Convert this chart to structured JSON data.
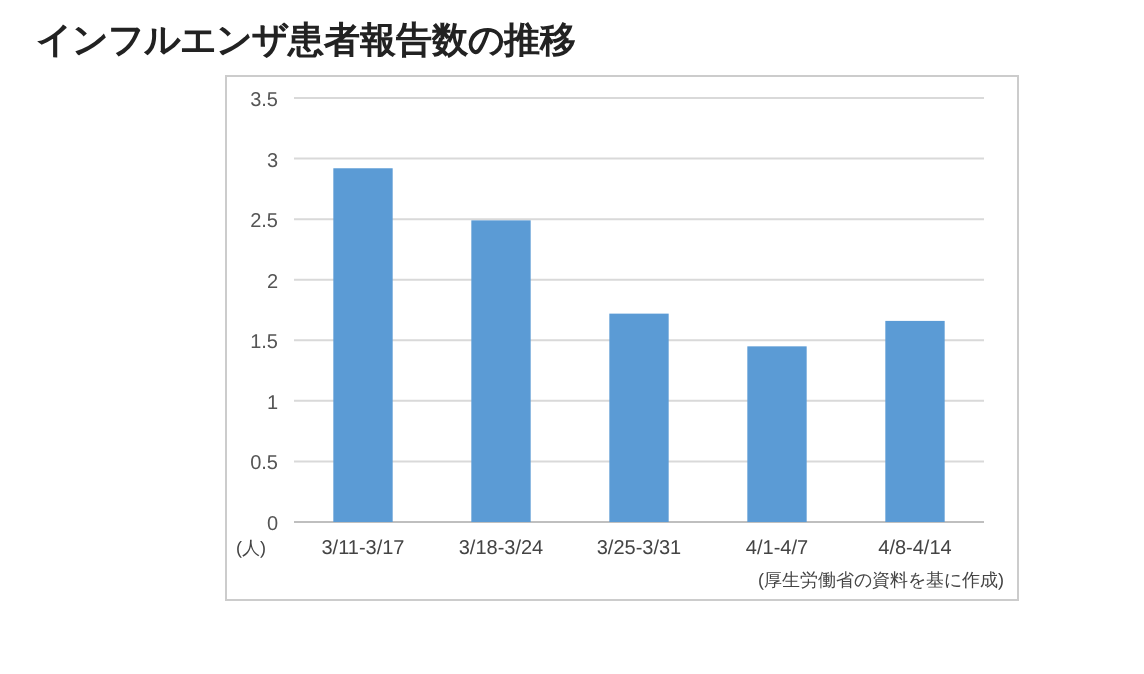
{
  "chart_data": {
    "type": "bar",
    "title": "インフルエンザ患者報告数の推移",
    "ylabel": "(人)",
    "categories": [
      "3/11-3/17",
      "3/18-3/24",
      "3/25-3/31",
      "4/1-4/7",
      "4/8-4/14"
    ],
    "values": [
      2.92,
      2.49,
      1.72,
      1.45,
      1.66
    ],
    "color": "#5b9bd5",
    "ylim": [
      0,
      3.5
    ],
    "yticks": [
      0,
      0.5,
      1,
      1.5,
      2,
      2.5,
      3,
      3.5
    ],
    "grid": "y",
    "annotations": [
      "(厚生労働省の資料を基に作成)"
    ]
  }
}
